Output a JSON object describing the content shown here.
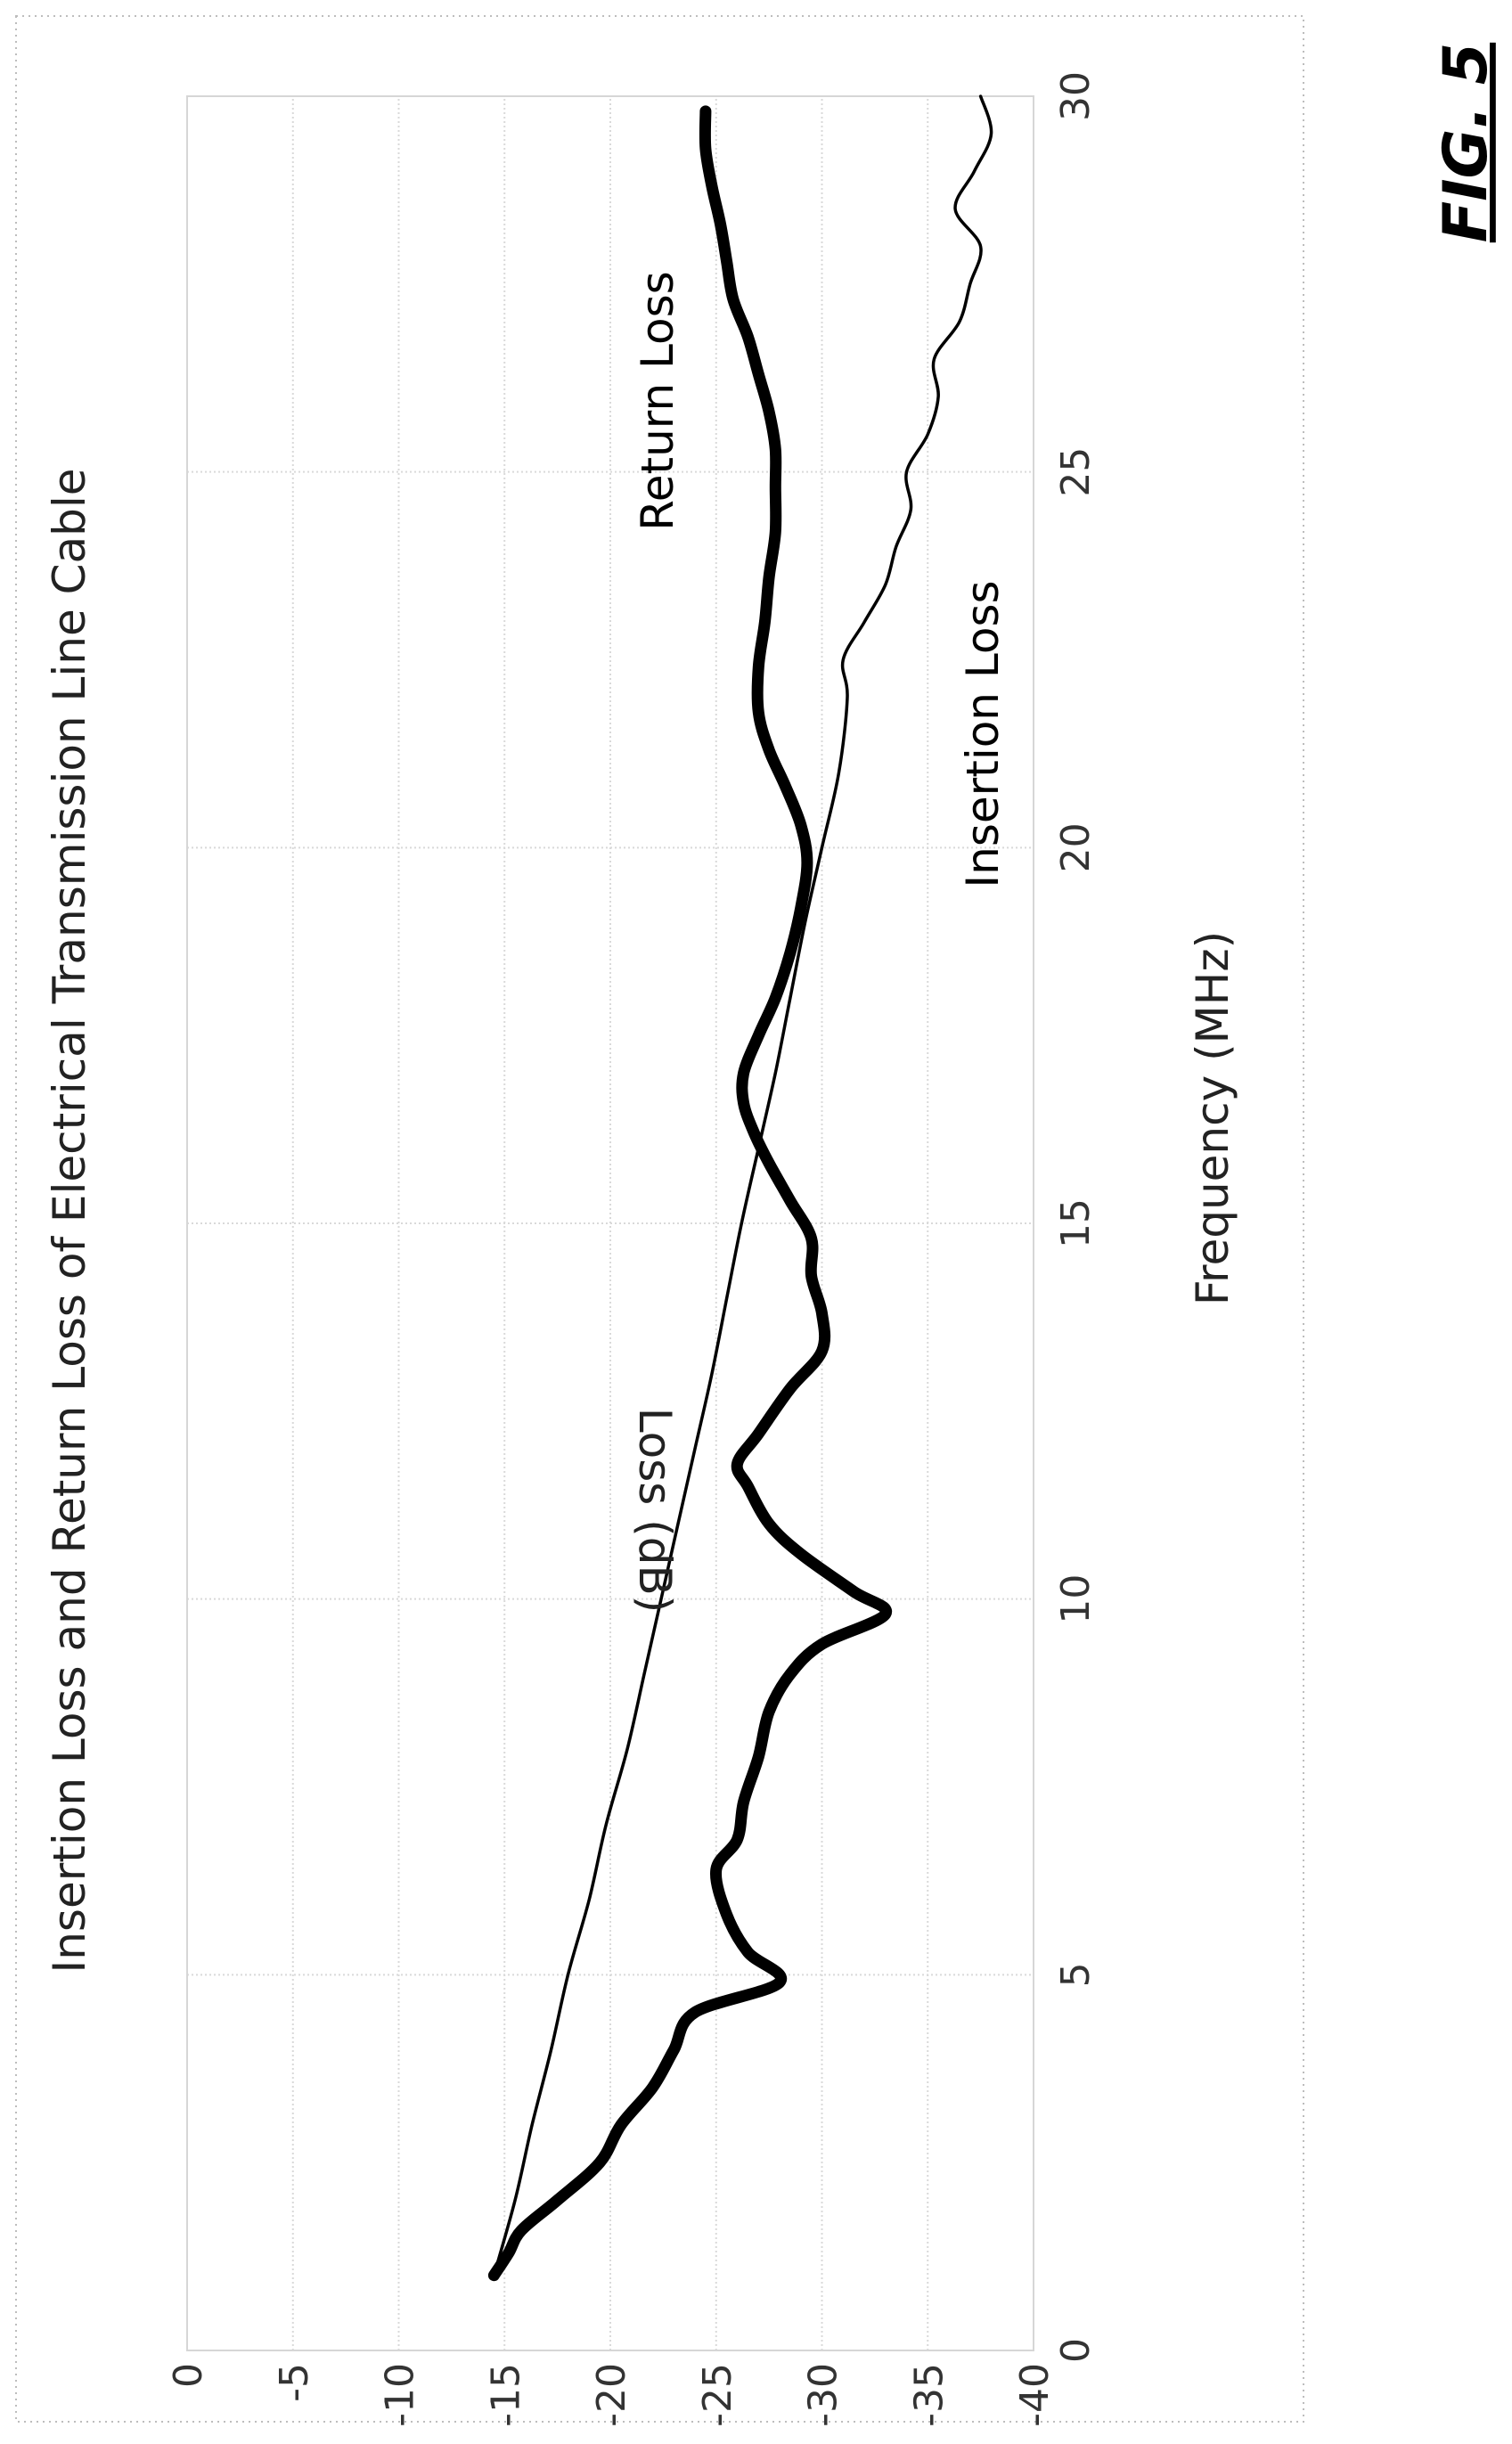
{
  "figure": {
    "label": "FIG. 5"
  },
  "chart_data": {
    "type": "line",
    "title": "Insertion Loss and Return Loss of Electrical Transmission Line Cable",
    "xlabel": "Frequency (MHz)",
    "ylabel": "Loss (dB)",
    "xlim": [
      0,
      30
    ],
    "ylim": [
      -40,
      0
    ],
    "xticks": [
      "0",
      "5",
      "10",
      "15",
      "20",
      "25",
      "30"
    ],
    "yticks": [
      "0",
      "-5",
      "-10",
      "-15",
      "-20",
      "-25",
      "-30",
      "-35",
      "-40"
    ],
    "grid": true,
    "legend": "inline labels",
    "series": [
      {
        "name": "Return Loss",
        "style": "thick",
        "color": "#000000",
        "x": [
          1.0,
          1.3,
          1.6,
          2.0,
          2.5,
          3.0,
          3.5,
          4.0,
          4.5,
          4.9,
          5.3,
          5.8,
          6.4,
          6.8,
          7.3,
          7.9,
          8.5,
          9.0,
          9.4,
          9.8,
          10.1,
          10.6,
          11.0,
          11.5,
          11.8,
          12.2,
          12.8,
          13.3,
          13.8,
          14.3,
          14.8,
          15.3,
          15.8,
          16.2,
          16.6,
          17.0,
          17.5,
          18.0,
          18.6,
          19.2,
          19.8,
          20.3,
          20.8,
          21.3,
          21.8,
          22.4,
          23.0,
          23.6,
          24.2,
          24.8,
          25.3,
          25.8,
          26.3,
          26.8,
          27.3,
          27.8,
          28.3,
          28.8,
          29.3,
          29.8
        ],
        "y": [
          -14.5,
          -15.2,
          -15.8,
          -17.5,
          -19.5,
          -20.5,
          -22.0,
          -23.0,
          -24.0,
          -28.0,
          -26.5,
          -25.5,
          -25.0,
          -26.0,
          -26.3,
          -27.0,
          -27.5,
          -28.5,
          -30.0,
          -33.0,
          -31.5,
          -29.0,
          -27.5,
          -26.5,
          -26.0,
          -27.0,
          -28.5,
          -30.0,
          -30.0,
          -29.5,
          -29.5,
          -28.5,
          -27.5,
          -26.8,
          -26.3,
          -26.3,
          -27.0,
          -27.8,
          -28.5,
          -29.0,
          -29.3,
          -29.0,
          -28.3,
          -27.5,
          -27.0,
          -27.0,
          -27.3,
          -27.5,
          -27.8,
          -27.8,
          -27.8,
          -27.5,
          -27.0,
          -26.5,
          -25.8,
          -25.5,
          -25.2,
          -24.8,
          -24.5,
          -24.5
        ]
      },
      {
        "name": "Insertion Loss",
        "style": "thin",
        "color": "#000000",
        "x": [
          1.0,
          2.0,
          3.0,
          4.0,
          5.0,
          6.0,
          7.0,
          8.0,
          9.0,
          10.0,
          11.0,
          12.0,
          13.0,
          14.0,
          15.0,
          16.0,
          17.0,
          18.0,
          19.0,
          20.0,
          21.0,
          22.0,
          22.5,
          23.0,
          23.5,
          24.0,
          24.5,
          25.0,
          25.5,
          26.0,
          26.5,
          27.0,
          27.5,
          28.0,
          28.5,
          29.0,
          29.5,
          30.0
        ],
        "y": [
          -14.5,
          -15.5,
          -16.3,
          -17.2,
          -18.0,
          -19.0,
          -19.8,
          -20.8,
          -21.6,
          -22.4,
          -23.2,
          -24.0,
          -24.8,
          -25.5,
          -26.2,
          -27.0,
          -27.8,
          -28.5,
          -29.2,
          -30.0,
          -30.8,
          -31.2,
          -31.0,
          -32.0,
          -33.0,
          -33.5,
          -34.2,
          -34.0,
          -35.0,
          -35.5,
          -35.3,
          -36.5,
          -37.0,
          -37.5,
          -36.3,
          -37.2,
          -38.0,
          -37.5
        ]
      }
    ]
  }
}
